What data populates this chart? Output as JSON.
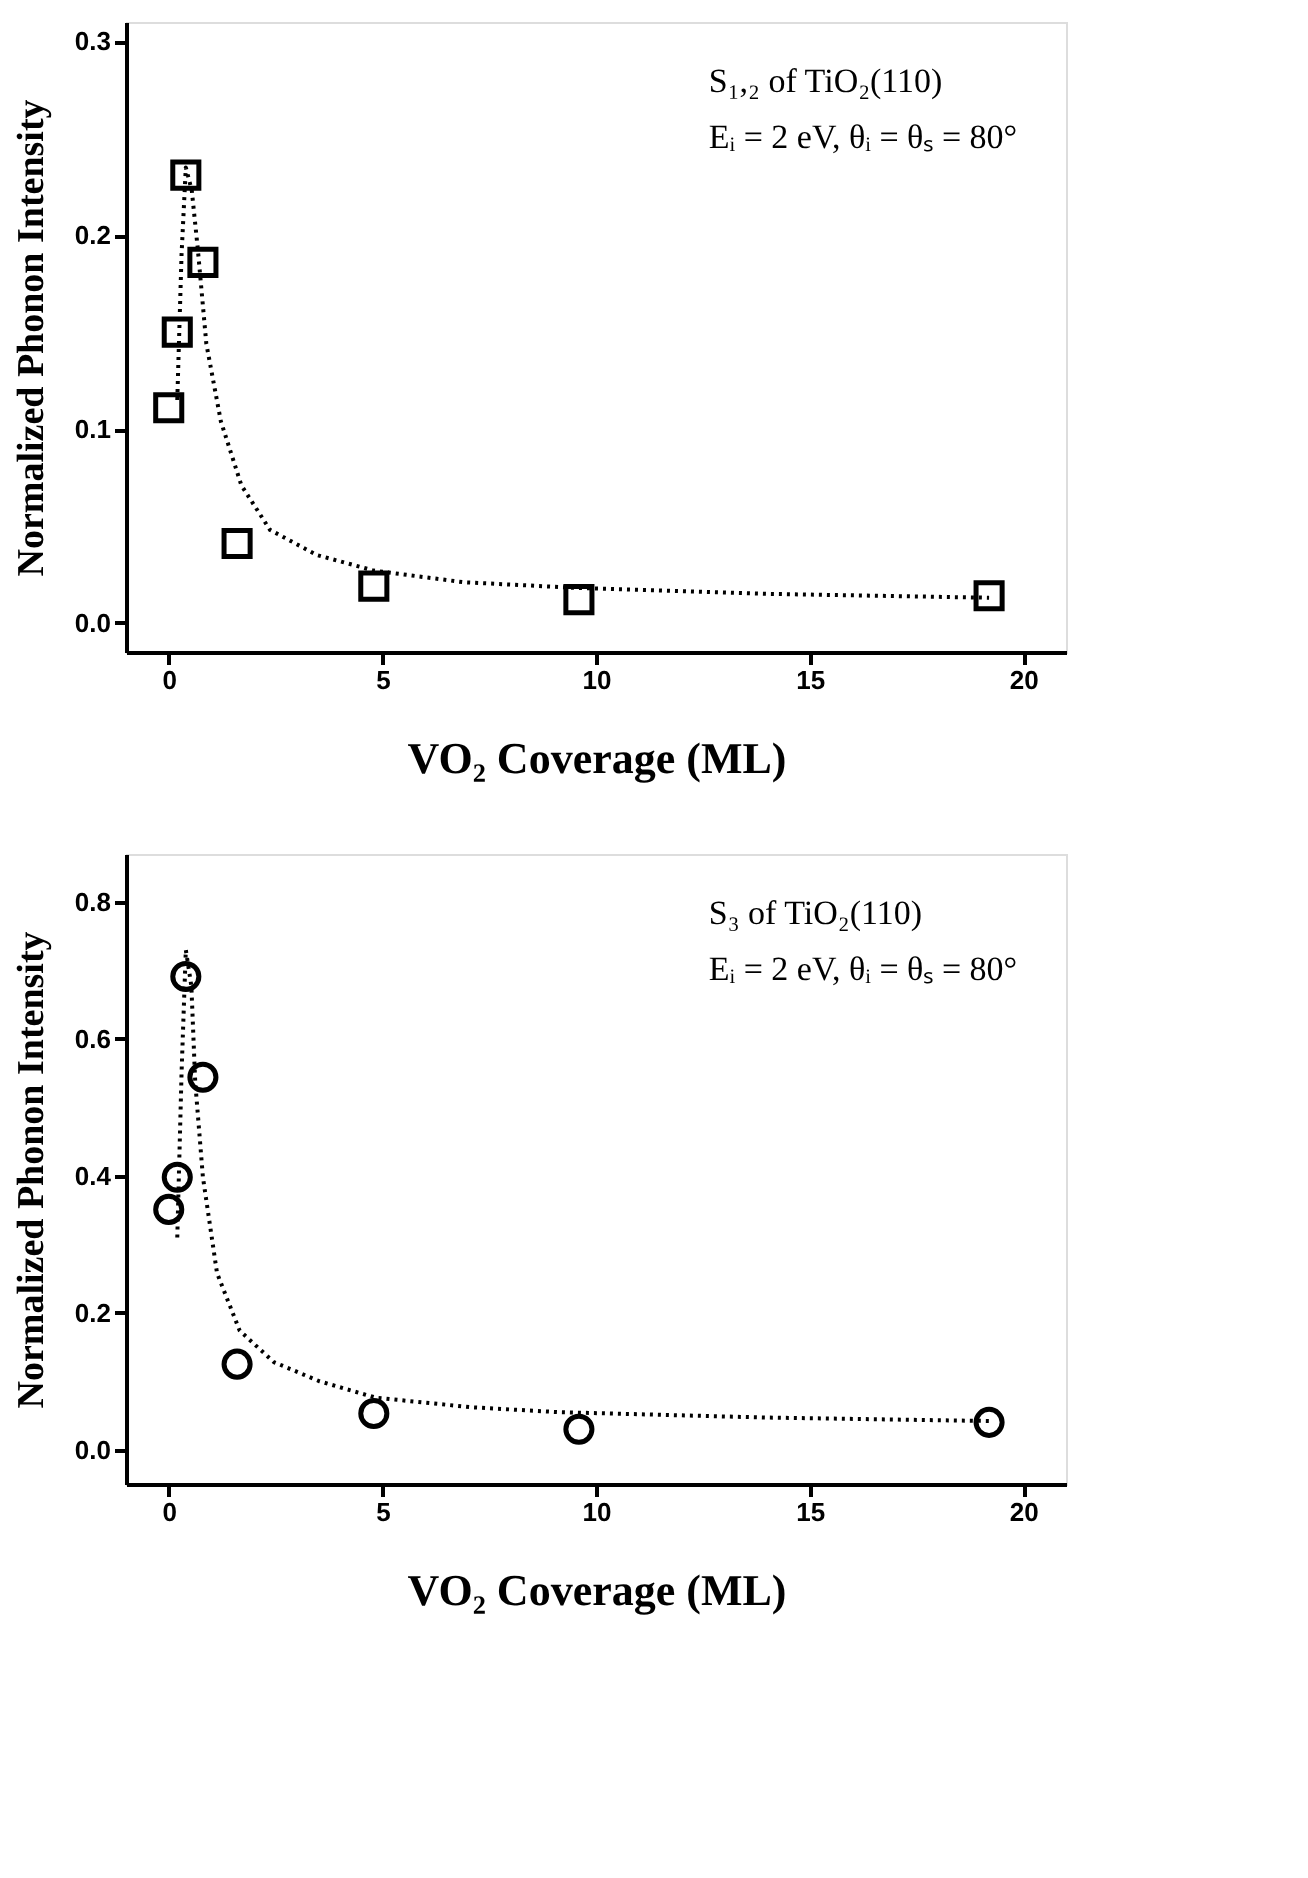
{
  "chart_data": [
    {
      "type": "scatter",
      "xlabel": "VO₂ Coverage (ML)",
      "ylabel": "Normalized Phonon Intensity",
      "annotations": [
        "S₁,₂ of TiO₂(110)",
        "Eᵢ = 2 eV, θᵢ = θₛ = 80°"
      ],
      "xlim": [
        -1,
        21
      ],
      "xticks": [
        0,
        5,
        10,
        15,
        20
      ],
      "ylim": [
        -0.015,
        0.31
      ],
      "yticks": [
        {
          "value": 0,
          "label": "0.0"
        },
        0.1,
        0.2,
        0.3
      ],
      "grid": false,
      "series": [
        {
          "marker": "square",
          "color": "#000000",
          "x": [
            0,
            0.2,
            0.4,
            0.8,
            1.6,
            4.8,
            9.6,
            19.2
          ],
          "values": [
            0.111,
            0.15,
            0.231,
            0.186,
            0.041,
            0.019,
            0.012,
            0.014
          ]
        },
        {
          "type": "line",
          "line_style": "dotted",
          "marker": "none",
          "color": "#000000",
          "x": [
            0.2,
            0.3,
            0.4,
            0.54,
            0.68,
            0.88,
            1.22,
            1.7,
            2.37,
            3.47,
            4.8,
            6.9,
            9.6,
            14,
            19.2
          ],
          "values": [
            0.115,
            0.19,
            0.235,
            0.223,
            0.193,
            0.144,
            0.104,
            0.071,
            0.048,
            0.035,
            0.027,
            0.021,
            0.018,
            0.015,
            0.013
          ]
        }
      ]
    },
    {
      "type": "scatter",
      "xlabel": "VO₂ Coverage (ML)",
      "ylabel": "Normalized Phonon Intensity",
      "annotations": [
        "S₃ of TiO₂(110)",
        "Eᵢ = 2 eV, θᵢ = θₛ = 80°"
      ],
      "xlim": [
        -1,
        21
      ],
      "xticks": [
        0,
        5,
        10,
        15,
        20
      ],
      "ylim": [
        -0.05,
        0.87
      ],
      "yticks": [
        {
          "value": 0,
          "label": "0.0"
        },
        0.2,
        0.4,
        0.6,
        0.8
      ],
      "grid": false,
      "series": [
        {
          "marker": "circle",
          "color": "#000000",
          "x": [
            0,
            0.2,
            0.4,
            0.8,
            1.6,
            4.8,
            9.6,
            19.2
          ],
          "values": [
            0.351,
            0.398,
            0.691,
            0.544,
            0.125,
            0.053,
            0.03,
            0.04
          ]
        },
        {
          "type": "line",
          "line_style": "dotted",
          "marker": "none",
          "color": "#000000",
          "x": [
            0.2,
            0.3,
            0.4,
            0.53,
            0.62,
            0.8,
            1.13,
            1.66,
            2.46,
            3.53,
            4.85,
            7.1,
            9.1,
            14,
            19.2
          ],
          "values": [
            0.31,
            0.55,
            0.73,
            0.677,
            0.537,
            0.398,
            0.258,
            0.174,
            0.128,
            0.1,
            0.076,
            0.062,
            0.055,
            0.047,
            0.042
          ]
        }
      ]
    }
  ]
}
